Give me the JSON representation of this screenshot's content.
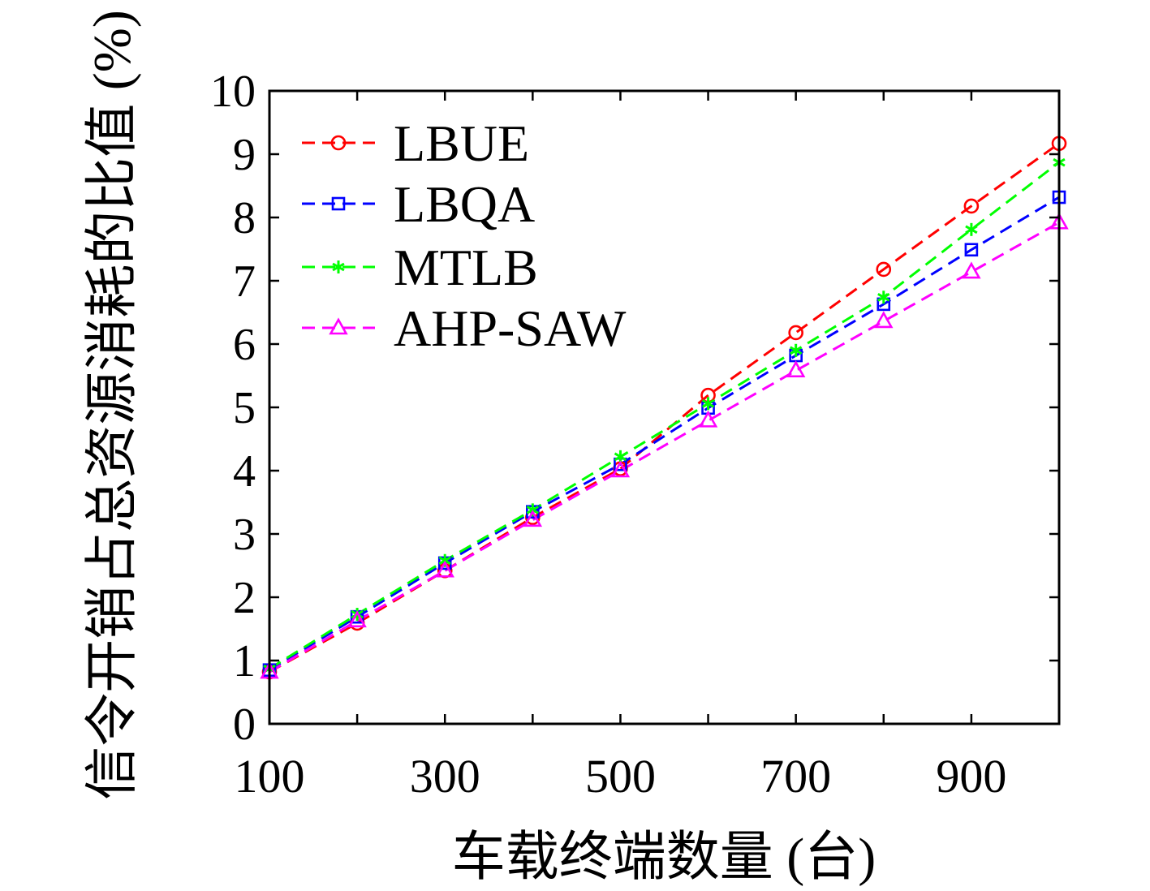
{
  "chart_data": {
    "type": "line",
    "title": "",
    "xlabel": "车载终端数量 (台)",
    "ylabel": "信令开销占总资源消耗的比值 (%)",
    "x": [
      100,
      200,
      300,
      400,
      500,
      600,
      700,
      800,
      900,
      1000
    ],
    "xlim": [
      100,
      1000
    ],
    "ylim": [
      0,
      10
    ],
    "xticks": [
      100,
      300,
      500,
      700,
      900
    ],
    "yticks": [
      0,
      1,
      2,
      3,
      4,
      5,
      6,
      7,
      8,
      9,
      10
    ],
    "grid": false,
    "legend": "top-left",
    "series": [
      {
        "name": "LBUE",
        "color": "#ff0000",
        "marker": "circle",
        "line_style": "dashed",
        "values": [
          0.82,
          1.59,
          2.42,
          3.26,
          4.03,
          5.19,
          6.18,
          7.18,
          8.18,
          9.17
        ]
      },
      {
        "name": "LBQA",
        "color": "#0000ff",
        "marker": "square",
        "line_style": "dashed",
        "values": [
          0.85,
          1.69,
          2.54,
          3.35,
          4.1,
          4.99,
          5.82,
          6.63,
          7.49,
          8.32
        ]
      },
      {
        "name": "MTLB",
        "color": "#00ff00",
        "marker": "asterisk",
        "line_style": "dashed",
        "values": [
          0.87,
          1.73,
          2.58,
          3.38,
          4.22,
          5.06,
          5.9,
          6.74,
          7.81,
          8.87
        ]
      },
      {
        "name": "AHP-SAW",
        "color": "#ff00ff",
        "marker": "triangle",
        "line_style": "dashed",
        "values": [
          0.82,
          1.63,
          2.42,
          3.22,
          4.0,
          4.79,
          5.58,
          6.36,
          7.14,
          7.92
        ]
      }
    ]
  }
}
